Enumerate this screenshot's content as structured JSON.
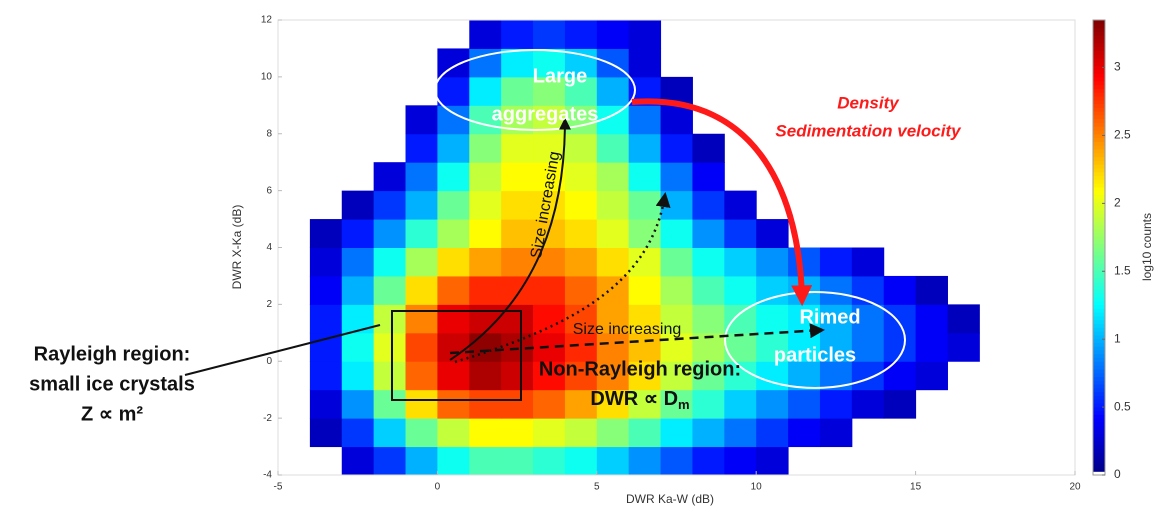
{
  "chart_data": {
    "type": "heatmap",
    "xlabel": "DWR Ka-W (dB)",
    "ylabel": "DWR X-Ka (dB)",
    "xlim": [
      -5,
      20
    ],
    "xticks": [
      -5,
      0,
      5,
      10,
      15,
      20
    ],
    "ylim": [
      -4,
      12
    ],
    "yticks": [
      -4,
      -2,
      0,
      2,
      4,
      6,
      8,
      10,
      12
    ],
    "xbins": [
      -4,
      -3,
      -2,
      -1,
      0,
      1,
      2,
      3,
      4,
      5,
      6,
      7,
      8,
      9,
      10,
      11,
      12,
      13,
      14,
      15,
      16,
      17,
      18
    ],
    "ybins": [
      -4,
      -3,
      -2,
      -1,
      0,
      1,
      2,
      3,
      4,
      5,
      6,
      7,
      8,
      9,
      10,
      11,
      12
    ],
    "z": [
      [
        null,
        0.3,
        0.6,
        1.0,
        1.3,
        1.5,
        1.5,
        1.4,
        1.3,
        1.1,
        0.9,
        0.7,
        0.5,
        0.4,
        0.3,
        null,
        null,
        null,
        null,
        null,
        null,
        null
      ],
      [
        0.2,
        0.6,
        1.1,
        1.6,
        1.9,
        2.1,
        2.1,
        2.0,
        1.9,
        1.7,
        1.5,
        1.2,
        1.0,
        0.8,
        0.6,
        0.4,
        0.3,
        null,
        null,
        null,
        null,
        null
      ],
      [
        0.3,
        0.9,
        1.6,
        2.2,
        2.6,
        2.7,
        2.7,
        2.6,
        2.4,
        2.2,
        1.9,
        1.6,
        1.4,
        1.1,
        0.9,
        0.7,
        0.5,
        0.3,
        0.2,
        null,
        null,
        null
      ],
      [
        0.5,
        1.2,
        1.9,
        2.6,
        3.0,
        3.2,
        3.1,
        2.9,
        2.7,
        2.5,
        2.2,
        1.9,
        1.6,
        1.4,
        1.2,
        1.0,
        0.8,
        0.6,
        0.4,
        0.3,
        null,
        null
      ],
      [
        0.5,
        1.3,
        2.0,
        2.7,
        3.1,
        3.3,
        3.2,
        3.0,
        2.8,
        2.5,
        2.3,
        2.0,
        1.8,
        1.6,
        1.4,
        1.2,
        1.0,
        0.8,
        0.6,
        0.4,
        0.3,
        null
      ],
      [
        0.5,
        1.2,
        1.9,
        2.5,
        3.0,
        3.1,
        3.1,
        2.9,
        2.7,
        2.4,
        2.2,
        1.9,
        1.7,
        1.5,
        1.3,
        1.2,
        1.0,
        0.8,
        0.6,
        0.4,
        0.2,
        null
      ],
      [
        0.4,
        1.0,
        1.6,
        2.2,
        2.6,
        2.8,
        2.8,
        2.8,
        2.6,
        2.4,
        2.1,
        1.8,
        1.5,
        1.3,
        1.1,
        1.0,
        0.8,
        0.6,
        0.4,
        0.2,
        null,
        null
      ],
      [
        0.3,
        0.8,
        1.3,
        1.8,
        2.2,
        2.4,
        2.5,
        2.5,
        2.4,
        2.2,
        2.0,
        1.6,
        1.3,
        1.1,
        0.9,
        0.7,
        0.5,
        0.3,
        null,
        null,
        null,
        null
      ],
      [
        0.2,
        0.5,
        0.9,
        1.4,
        1.8,
        2.1,
        2.3,
        2.3,
        2.2,
        2.0,
        1.7,
        1.3,
        0.9,
        0.6,
        0.3,
        null,
        null,
        null,
        null,
        null,
        null,
        null
      ],
      [
        null,
        0.2,
        0.6,
        1.0,
        1.6,
        2.0,
        2.2,
        2.2,
        2.1,
        1.9,
        1.6,
        1.0,
        0.6,
        0.3,
        null,
        null,
        null,
        null,
        null,
        null,
        null,
        null
      ],
      [
        null,
        null,
        0.3,
        0.8,
        1.3,
        1.9,
        2.1,
        2.1,
        2.0,
        1.8,
        1.3,
        0.8,
        0.4,
        null,
        null,
        null,
        null,
        null,
        null,
        null,
        null,
        null
      ],
      [
        null,
        null,
        null,
        0.5,
        1.0,
        1.7,
        2.0,
        2.0,
        1.9,
        1.5,
        1.0,
        0.5,
        0.2,
        null,
        null,
        null,
        null,
        null,
        null,
        null,
        null,
        null
      ],
      [
        null,
        null,
        null,
        0.3,
        0.8,
        1.5,
        1.8,
        1.9,
        1.7,
        1.3,
        0.8,
        0.3,
        null,
        null,
        null,
        null,
        null,
        null,
        null,
        null,
        null,
        null
      ],
      [
        null,
        null,
        null,
        null,
        0.5,
        1.2,
        1.6,
        1.7,
        1.5,
        1.0,
        0.5,
        0.2,
        null,
        null,
        null,
        null,
        null,
        null,
        null,
        null,
        null,
        null
      ],
      [
        null,
        null,
        null,
        null,
        0.3,
        0.8,
        1.2,
        1.3,
        1.1,
        0.7,
        0.3,
        null,
        null,
        null,
        null,
        null,
        null,
        null,
        null,
        null,
        null,
        null
      ],
      [
        null,
        null,
        null,
        null,
        null,
        0.3,
        0.5,
        0.6,
        0.5,
        0.4,
        0.3,
        null,
        null,
        null,
        null,
        null,
        null,
        null,
        null,
        null,
        null,
        null
      ]
    ],
    "colorbar": {
      "label": "log10 counts",
      "clim": [
        0,
        3.35
      ],
      "ticks": [
        0,
        0.5,
        1,
        1.5,
        2,
        2.5,
        3
      ]
    },
    "annotations": {
      "large_aggregates": [
        "Large",
        "aggregates"
      ],
      "density": [
        "Density",
        "Sedimentation velocity"
      ],
      "size_vertical": "Size increasing",
      "size_horizontal": "Size increasing",
      "rimed": [
        "Rimed",
        "particles"
      ],
      "non_rayleigh": [
        "Non-Rayleigh region:",
        "DWR ∝ D",
        "m"
      ],
      "rayleigh": [
        "Rayleigh region:",
        "small ice crystals",
        "Z ∝ m²"
      ]
    }
  }
}
